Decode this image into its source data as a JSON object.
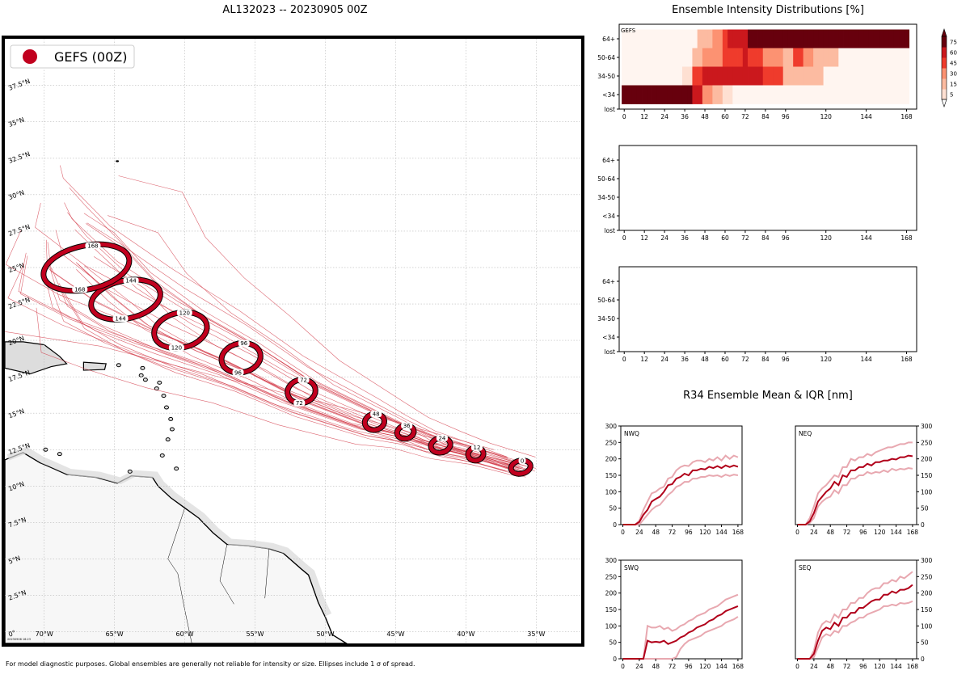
{
  "map": {
    "title": "AL132023 -- 20230905 00Z",
    "legend_label": "GEFS (00Z)",
    "legend_color": "#c1001e",
    "stamp": "20230906 16:23",
    "lat_labels": [
      "0°",
      "2.5°N",
      "5°N",
      "7.5°N",
      "10°N",
      "12.5°N",
      "15°N",
      "17.5°N",
      "20°N",
      "22.5°N",
      "25°N",
      "27.5°N",
      "30°N",
      "32.5°N",
      "35°N",
      "37.5°N"
    ],
    "lat_values": [
      0,
      2.5,
      5,
      7.5,
      10,
      12.5,
      15,
      17.5,
      20,
      22.5,
      25,
      27.5,
      30,
      32.5,
      35,
      37.5
    ],
    "lon_labels": [
      "70°W",
      "65°W",
      "60°W",
      "55°W",
      "50°W",
      "45°W",
      "40°W",
      "35°W"
    ],
    "lon_values": [
      -70,
      -65,
      -60,
      -55,
      -50,
      -45,
      -40,
      -35
    ],
    "extent": {
      "lon": [
        -72.8,
        -31.8
      ],
      "lat": [
        -0.8,
        40.7
      ]
    },
    "ellipses": [
      {
        "hour": "0",
        "lon": -36.1,
        "lat": 11.3,
        "rlon": 0.7,
        "rlat": 0.45
      },
      {
        "hour": "12",
        "lon": -39.3,
        "lat": 12.2,
        "rlon": 0.55,
        "rlat": 0.45
      },
      {
        "hour": "24",
        "lon": -41.8,
        "lat": 12.8,
        "rlon": 0.7,
        "rlat": 0.5
      },
      {
        "hour": "36",
        "lon": -44.3,
        "lat": 13.7,
        "rlon": 0.6,
        "rlat": 0.45
      },
      {
        "hour": "48",
        "lon": -46.5,
        "lat": 14.4,
        "rlon": 0.7,
        "rlat": 0.55
      },
      {
        "hour": "72",
        "lon": -51.7,
        "lat": 16.5,
        "rlon": 1.0,
        "rlat": 0.8
      },
      {
        "hour": "96",
        "lon": -56.0,
        "lat": 18.8,
        "rlon": 1.4,
        "rlat": 1.0
      },
      {
        "hour": "120",
        "lon": -60.3,
        "lat": 20.7,
        "rlon": 1.9,
        "rlat": 1.2
      },
      {
        "hour": "144",
        "lon": -64.2,
        "lat": 22.8,
        "rlon": 2.5,
        "rlat": 1.3
      },
      {
        "hour": "168",
        "lon": -67.0,
        "lat": 25.0,
        "rlon": 3.1,
        "rlat": 1.5
      }
    ]
  },
  "intensity": {
    "title": "Ensemble Intensity Distributions [%]",
    "panel_label": "GEFS",
    "y_categories": [
      "64+",
      "50-64",
      "34-50",
      "<34",
      "lost"
    ],
    "x_ticks": [
      0,
      12,
      24,
      36,
      48,
      60,
      72,
      84,
      96,
      120,
      144,
      168
    ],
    "colorbar_ticks": [
      5,
      15,
      30,
      45,
      60,
      75
    ],
    "rows": {
      "64+": [
        0,
        0,
        0,
        0,
        0,
        0,
        0,
        0,
        0,
        0,
        0,
        0,
        0,
        0,
        0,
        15,
        15,
        15,
        30,
        30,
        45,
        60,
        60,
        60,
        60,
        75,
        75,
        75,
        75,
        75,
        75,
        75,
        75,
        75,
        75,
        75,
        75,
        75,
        75,
        75,
        75,
        75,
        75,
        75,
        75,
        75,
        75,
        75,
        75,
        75,
        75,
        75,
        75,
        75,
        75,
        75,
        75
      ],
      "50-64": [
        0,
        0,
        0,
        0,
        0,
        0,
        0,
        0,
        0,
        0,
        0,
        0,
        0,
        0,
        15,
        15,
        30,
        30,
        30,
        30,
        45,
        45,
        45,
        45,
        60,
        45,
        45,
        45,
        30,
        30,
        30,
        30,
        15,
        15,
        45,
        45,
        30,
        30,
        15,
        15,
        15,
        15,
        15,
        0,
        0,
        0,
        0,
        0,
        0,
        0,
        0,
        0,
        0,
        0,
        0,
        0,
        0
      ],
      "34-50": [
        0,
        0,
        0,
        0,
        0,
        0,
        0,
        0,
        0,
        0,
        0,
        0,
        5,
        5,
        45,
        45,
        60,
        60,
        60,
        60,
        60,
        60,
        60,
        60,
        60,
        60,
        60,
        60,
        45,
        45,
        45,
        45,
        15,
        15,
        15,
        15,
        15,
        15,
        15,
        15,
        0,
        0,
        0,
        0,
        0,
        0,
        0,
        0,
        0,
        0,
        0,
        0,
        0,
        0,
        0,
        0,
        0
      ],
      "<34": [
        75,
        75,
        75,
        75,
        75,
        75,
        75,
        75,
        75,
        75,
        75,
        75,
        75,
        75,
        60,
        60,
        30,
        30,
        15,
        15,
        5,
        5,
        0,
        0,
        0,
        0,
        0,
        0,
        0,
        0,
        0,
        0,
        0,
        0,
        0,
        0,
        0,
        0,
        0,
        0,
        0,
        0,
        0,
        0,
        0,
        0,
        0,
        0,
        0,
        0,
        0,
        0,
        0,
        0,
        0,
        0,
        0
      ],
      "lost": [
        0,
        0,
        0,
        0,
        0,
        0,
        0,
        0,
        0,
        0,
        0,
        0,
        0,
        0,
        0,
        0,
        0,
        0,
        0,
        0,
        0,
        0,
        0,
        0,
        0,
        0,
        0,
        0,
        0,
        0,
        0,
        0,
        0,
        0,
        0,
        0,
        0,
        0,
        0,
        0,
        0,
        0,
        0,
        0,
        0,
        0,
        0,
        0,
        0,
        0,
        0,
        0,
        0,
        0,
        0,
        0,
        0
      ]
    }
  },
  "r34": {
    "title": "R34 Ensemble Mean & IQR [nm]",
    "y_ticks": [
      0,
      50,
      100,
      150,
      200,
      250,
      300
    ],
    "x_ticks": [
      0,
      24,
      48,
      72,
      96,
      120,
      144,
      168
    ],
    "mean_color": "#b1001a",
    "iqr_color": "#e8a8b0",
    "quadrants": [
      {
        "label": "NWQ",
        "x": [
          0,
          6,
          12,
          18,
          24,
          30,
          36,
          42,
          48,
          54,
          60,
          66,
          72,
          78,
          84,
          90,
          96,
          102,
          108,
          114,
          120,
          126,
          132,
          138,
          144,
          150,
          156,
          162,
          168
        ],
        "mean": [
          0,
          0,
          0,
          0,
          8,
          30,
          45,
          70,
          78,
          85,
          100,
          120,
          123,
          140,
          145,
          155,
          150,
          165,
          165,
          170,
          168,
          176,
          172,
          178,
          172,
          180,
          175,
          180,
          176
        ],
        "q1": [
          0,
          0,
          0,
          0,
          0,
          15,
          30,
          45,
          55,
          60,
          75,
          90,
          100,
          115,
          120,
          130,
          130,
          140,
          140,
          145,
          145,
          150,
          148,
          150,
          145,
          152,
          148,
          152,
          150
        ],
        "q3": [
          0,
          0,
          0,
          0,
          12,
          45,
          70,
          95,
          100,
          110,
          115,
          140,
          145,
          165,
          175,
          180,
          178,
          190,
          195,
          195,
          190,
          200,
          195,
          205,
          195,
          210,
          200,
          210,
          205
        ]
      },
      {
        "label": "NEQ",
        "x": [
          0,
          6,
          12,
          18,
          24,
          30,
          36,
          42,
          48,
          54,
          60,
          66,
          72,
          78,
          84,
          90,
          96,
          102,
          108,
          114,
          120,
          126,
          132,
          138,
          144,
          150,
          156,
          162,
          168
        ],
        "mean": [
          0,
          0,
          0,
          10,
          35,
          70,
          85,
          100,
          110,
          130,
          120,
          150,
          145,
          165,
          165,
          175,
          175,
          185,
          180,
          190,
          190,
          195,
          195,
          200,
          198,
          205,
          205,
          210,
          208
        ],
        "q1": [
          0,
          0,
          0,
          5,
          20,
          55,
          70,
          80,
          85,
          105,
          95,
          120,
          120,
          140,
          140,
          150,
          150,
          160,
          155,
          160,
          158,
          165,
          160,
          170,
          165,
          170,
          168,
          172,
          170
        ],
        "q3": [
          0,
          0,
          0,
          20,
          55,
          95,
          110,
          120,
          135,
          150,
          145,
          175,
          175,
          200,
          195,
          205,
          205,
          215,
          210,
          220,
          225,
          230,
          235,
          235,
          240,
          245,
          245,
          250,
          250
        ]
      },
      {
        "label": "SWQ",
        "x": [
          0,
          6,
          12,
          18,
          24,
          30,
          36,
          42,
          48,
          54,
          60,
          66,
          72,
          78,
          84,
          90,
          96,
          102,
          108,
          114,
          120,
          126,
          132,
          138,
          144,
          150,
          156,
          162,
          168
        ],
        "mean": [
          0,
          0,
          0,
          0,
          0,
          0,
          55,
          50,
          52,
          50,
          55,
          45,
          50,
          55,
          65,
          70,
          80,
          85,
          95,
          100,
          105,
          115,
          120,
          130,
          135,
          145,
          150,
          155,
          160
        ],
        "q1": [
          0,
          0,
          0,
          0,
          0,
          0,
          0,
          0,
          0,
          0,
          0,
          0,
          0,
          5,
          30,
          45,
          55,
          60,
          65,
          70,
          80,
          85,
          90,
          95,
          100,
          110,
          115,
          120,
          128
        ],
        "q3": [
          0,
          0,
          0,
          0,
          0,
          0,
          100,
          95,
          95,
          100,
          90,
          95,
          85,
          90,
          100,
          105,
          115,
          120,
          130,
          135,
          140,
          150,
          155,
          160,
          170,
          180,
          185,
          190,
          195
        ]
      },
      {
        "label": "SEQ",
        "x": [
          0,
          6,
          12,
          18,
          24,
          30,
          36,
          42,
          48,
          54,
          60,
          66,
          72,
          78,
          84,
          90,
          96,
          102,
          108,
          114,
          120,
          126,
          132,
          138,
          144,
          150,
          156,
          162,
          168
        ],
        "mean": [
          0,
          0,
          0,
          0,
          15,
          55,
          85,
          95,
          90,
          110,
          100,
          125,
          125,
          140,
          140,
          155,
          155,
          165,
          175,
          180,
          180,
          195,
          195,
          205,
          200,
          210,
          210,
          215,
          225
        ],
        "q1": [
          0,
          0,
          0,
          0,
          5,
          35,
          65,
          75,
          70,
          85,
          80,
          100,
          100,
          110,
          115,
          125,
          125,
          135,
          140,
          145,
          150,
          160,
          160,
          165,
          162,
          170,
          168,
          170,
          175
        ],
        "q3": [
          0,
          0,
          0,
          0,
          25,
          80,
          105,
          115,
          110,
          135,
          125,
          150,
          150,
          170,
          170,
          185,
          185,
          200,
          210,
          215,
          215,
          230,
          230,
          240,
          235,
          250,
          245,
          255,
          265
        ]
      }
    ]
  },
  "footer": "For model diagnostic purposes. Global ensembles are generally not reliable for intensity or size. Ellipses include 1 σ of spread.",
  "chart_data": [
    {
      "type": "scatter",
      "title": "AL132023 -- 20230905 00Z",
      "series": [
        {
          "name": "GEFS (00Z)"
        }
      ],
      "x_label": "",
      "y_label": "",
      "xlim": [
        -72.8,
        -31.8
      ],
      "ylim": [
        -0.8,
        40.7
      ]
    },
    {
      "type": "heatmap",
      "title": "Ensemble Intensity Distributions [%]",
      "categories": [
        "64+",
        "50-64",
        "34-50",
        "<34",
        "lost"
      ],
      "xlim": [
        -3,
        174
      ]
    },
    {
      "type": "line",
      "title": "R34 Ensemble Mean & IQR [nm]",
      "ylim": [
        0,
        300
      ],
      "xlim": [
        -3,
        174
      ]
    }
  ]
}
